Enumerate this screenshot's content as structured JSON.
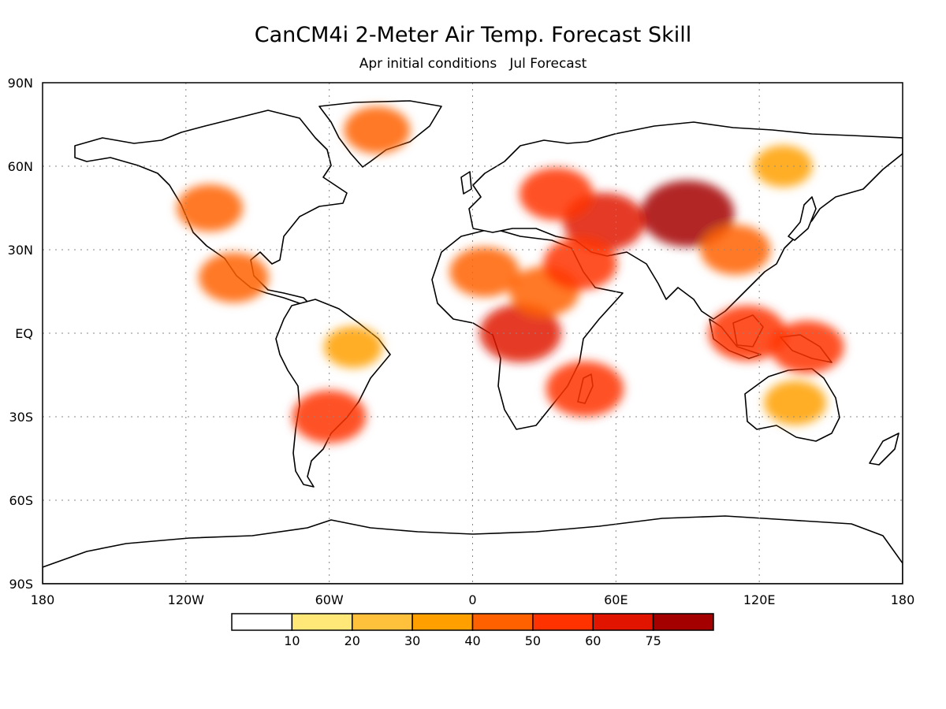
{
  "title": "CanCM4i 2-Meter Air Temp. Forecast Skill",
  "subtitle": "Apr initial conditions   Jul Forecast",
  "axes": {
    "lat_labels": [
      "90N",
      "60N",
      "30N",
      "EQ",
      "30S",
      "60S",
      "90S"
    ],
    "lon_labels": [
      "180",
      "120W",
      "60W",
      "0",
      "60E",
      "120E",
      "180"
    ],
    "lat_values": [
      90,
      60,
      30,
      0,
      -30,
      -60,
      -90
    ],
    "lon_values": [
      -180,
      -120,
      -60,
      0,
      60,
      120,
      180
    ],
    "gridlines": true
  },
  "colorbar": {
    "labels": [
      "10",
      "20",
      "30",
      "40",
      "50",
      "60",
      "75"
    ],
    "colors": [
      "#ffffff",
      "#ffe878",
      "#ffc03c",
      "#ffa000",
      "#ff6000",
      "#ff3200",
      "#e11400",
      "#a50000"
    ]
  },
  "chart_data": {
    "type": "heatmap",
    "title": "CanCM4i 2-Meter Air Temp. Forecast Skill",
    "subtitle": "Apr initial conditions   Jul Forecast",
    "x_range": [
      -180,
      180
    ],
    "y_range": [
      -90,
      90
    ],
    "levels": [
      10,
      20,
      30,
      40,
      50,
      60,
      75
    ],
    "regions": [
      {
        "lon": 90,
        "lat": 43,
        "value": 75
      },
      {
        "lon": 55,
        "lat": 40,
        "value": 60
      },
      {
        "lon": 35,
        "lat": 50,
        "value": 50
      },
      {
        "lon": 20,
        "lat": 0,
        "value": 60
      },
      {
        "lon": 5,
        "lat": 22,
        "value": 45
      },
      {
        "lon": 30,
        "lat": 15,
        "value": 45
      },
      {
        "lon": 45,
        "lat": 25,
        "value": 50
      },
      {
        "lon": -40,
        "lat": 73,
        "value": 40
      },
      {
        "lon": -110,
        "lat": 45,
        "value": 40
      },
      {
        "lon": -100,
        "lat": 20,
        "value": 45
      },
      {
        "lon": -60,
        "lat": -30,
        "value": 50
      },
      {
        "lon": -50,
        "lat": -5,
        "value": 30
      },
      {
        "lon": 115,
        "lat": 0,
        "value": 55
      },
      {
        "lon": 140,
        "lat": -5,
        "value": 50
      },
      {
        "lon": 135,
        "lat": -25,
        "value": 35
      },
      {
        "lon": 47,
        "lat": -20,
        "value": 55
      },
      {
        "lon": 110,
        "lat": 30,
        "value": 45
      },
      {
        "lon": 130,
        "lat": 60,
        "value": 30
      }
    ]
  }
}
